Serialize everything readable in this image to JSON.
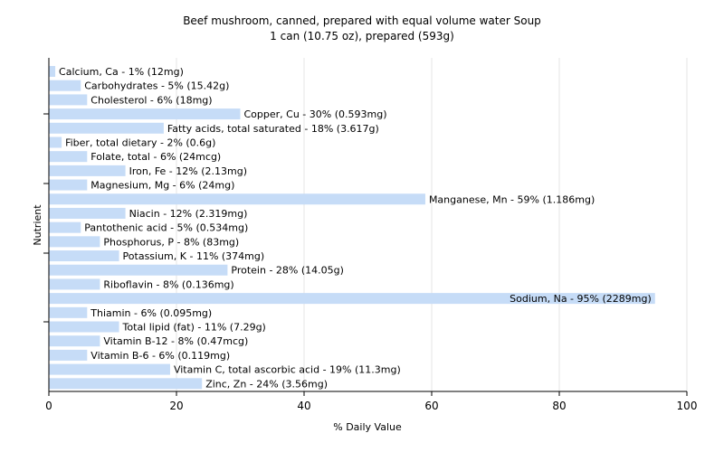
{
  "chart_data": {
    "type": "bar",
    "orientation": "horizontal",
    "title": "Beef mushroom, canned, prepared with equal volume water Soup",
    "subtitle": "1 can (10.75 oz), prepared (593g)",
    "xlabel": "% Daily Value",
    "ylabel": "Nutrient",
    "xlim": [
      0,
      100
    ],
    "xticks": [
      0,
      20,
      40,
      60,
      80,
      100
    ],
    "grid": true,
    "bar_color": "#c6dcf7",
    "grid_color": "#e4e4e4",
    "categories": [
      "Calcium, Ca",
      "Carbohydrates",
      "Cholesterol",
      "Copper, Cu",
      "Fatty acids, total saturated",
      "Fiber, total dietary",
      "Folate, total",
      "Iron, Fe",
      "Magnesium, Mg",
      "Manganese, Mn",
      "Niacin",
      "Pantothenic acid",
      "Phosphorus, P",
      "Potassium, K",
      "Protein",
      "Riboflavin",
      "Sodium, Na",
      "Thiamin",
      "Total lipid (fat)",
      "Vitamin B-12",
      "Vitamin B-6",
      "Vitamin C, total ascorbic acid",
      "Zinc, Zn"
    ],
    "values": [
      1,
      5,
      6,
      30,
      18,
      2,
      6,
      12,
      6,
      59,
      12,
      5,
      8,
      11,
      28,
      8,
      95,
      6,
      11,
      8,
      6,
      19,
      24
    ],
    "labels": [
      "Calcium, Ca - 1% (12mg)",
      "Carbohydrates - 5% (15.42g)",
      "Cholesterol - 6% (18mg)",
      "Copper, Cu - 30% (0.593mg)",
      "Fatty acids, total saturated - 18% (3.617g)",
      "Fiber, total dietary - 2% (0.6g)",
      "Folate, total - 6% (24mcg)",
      "Iron, Fe - 12% (2.13mg)",
      "Magnesium, Mg - 6% (24mg)",
      "Manganese, Mn - 59% (1.186mg)",
      "Niacin - 12% (2.319mg)",
      "Pantothenic acid - 5% (0.534mg)",
      "Phosphorus, P - 8% (83mg)",
      "Potassium, K - 11% (374mg)",
      "Protein - 28% (14.05g)",
      "Riboflavin - 8% (0.136mg)",
      "Sodium, Na - 95% (2289mg)",
      "Thiamin - 6% (0.095mg)",
      "Total lipid (fat) - 11% (7.29g)",
      "Vitamin B-12 - 8% (0.47mcg)",
      "Vitamin B-6 - 6% (0.119mg)",
      "Vitamin C, total ascorbic acid - 19% (11.3mg)",
      "Zinc, Zn - 24% (3.56mg)"
    ]
  }
}
